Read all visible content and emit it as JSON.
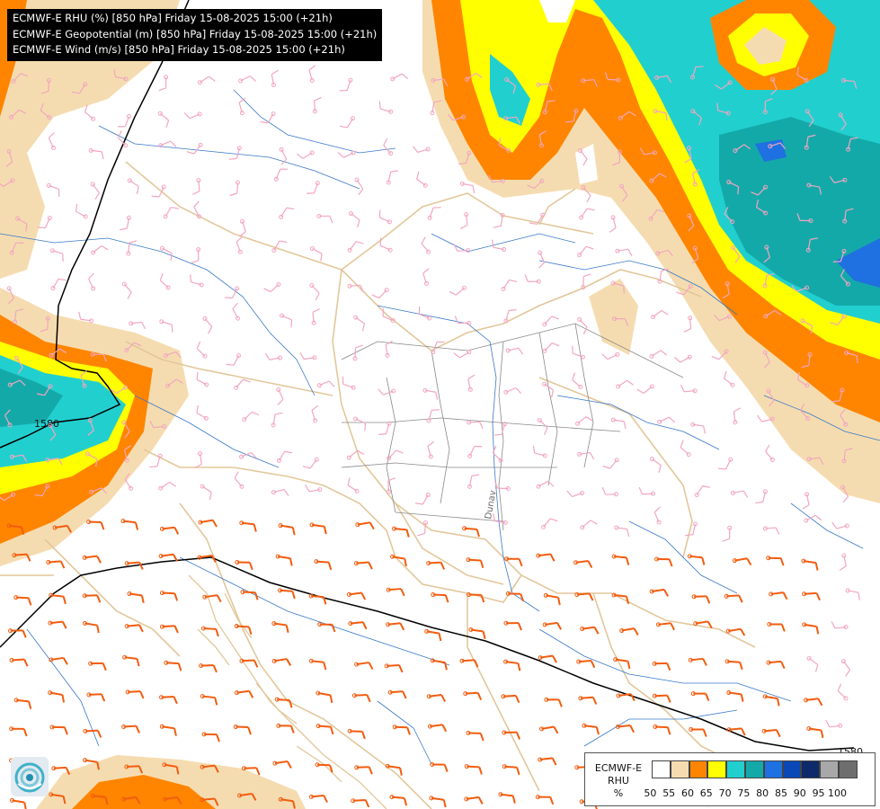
{
  "header": {
    "lines": [
      "ECMWF-E RHU (%) [850 hPa] Friday 15-08-2025 15:00 (+21h)",
      "ECMWF-E Geopotential (m) [850 hPa] Friday 15-08-2025 15:00 (+21h)",
      "ECMWF-E Wind (m/s) [850 hPa] Friday 15-08-2025 15:00 (+21h)"
    ]
  },
  "map": {
    "contour_labels": [
      "1580",
      "1580"
    ],
    "river_label": "Dunav"
  },
  "legend": {
    "title": [
      "ECMWF-E",
      "RHU",
      "%"
    ],
    "ticks": [
      "50",
      "55",
      "60",
      "65",
      "70",
      "75",
      "80",
      "85",
      "90",
      "95",
      "100"
    ],
    "colors": [
      "#ffffff",
      "#f5dcb0",
      "#ff8500",
      "#ffff00",
      "#22cfcf",
      "#14a9a9",
      "#1f70e0",
      "#0a48b8",
      "#0f2a6a",
      "#a8a8a8",
      "#6e6e6e"
    ]
  },
  "logo": {
    "icon": "ecmwf-swirl-icon"
  }
}
